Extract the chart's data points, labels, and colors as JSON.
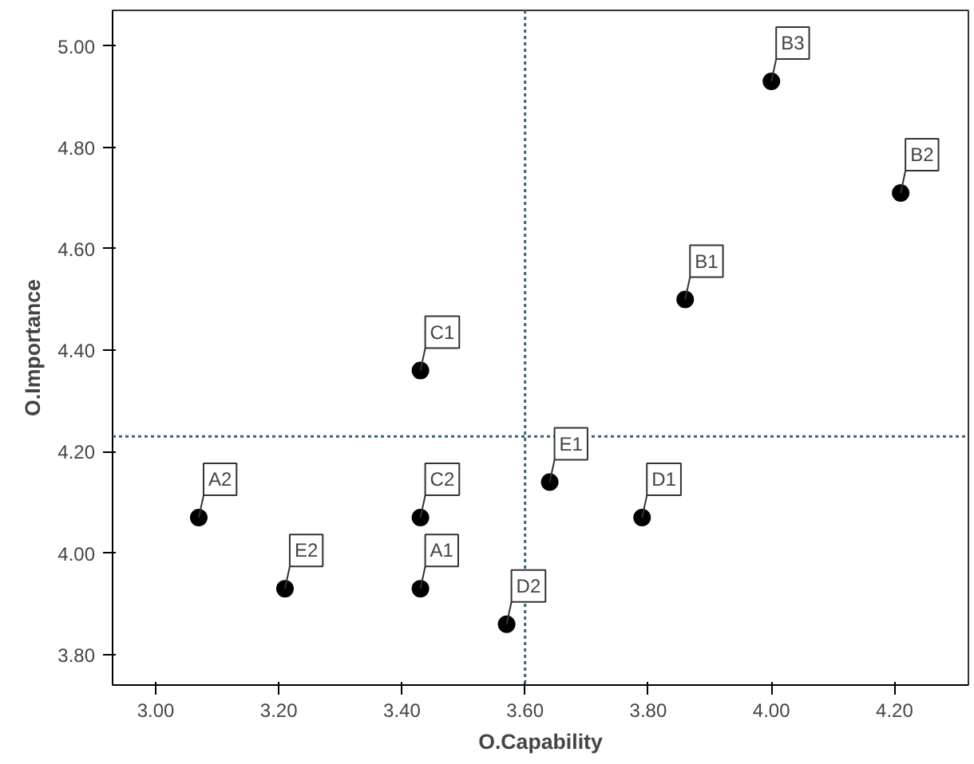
{
  "chart_data": {
    "type": "scatter",
    "xlabel": "O.Capability",
    "ylabel": "O.Importance",
    "x": [
      3.07,
      3.21,
      3.43,
      3.43,
      3.43,
      3.57,
      3.64,
      3.79,
      3.86,
      4.0,
      4.21
    ],
    "series": [
      {
        "color": "#000000",
        "values": [
          4.07,
          3.93,
          4.36,
          4.07,
          3.93,
          3.86,
          4.14,
          4.07,
          4.5,
          4.93,
          4.71
        ]
      }
    ],
    "marker": "circle",
    "grid": false,
    "xlim": [
      2.93,
      4.32
    ],
    "ylim": [
      3.74,
      5.07
    ],
    "xticks": [
      {
        "value": 3.0,
        "label": "3.00"
      },
      {
        "value": 3.2,
        "label": "3.20"
      },
      {
        "value": 3.4,
        "label": "3.40"
      },
      {
        "value": 3.6,
        "label": "3.60"
      },
      {
        "value": 3.8,
        "label": "3.80"
      },
      {
        "value": 4.0,
        "label": "4.00"
      },
      {
        "value": 4.2,
        "label": "4.20"
      }
    ],
    "yticks": [
      {
        "value": 3.8,
        "label": "3.80"
      },
      {
        "value": 4.0,
        "label": "4.00"
      },
      {
        "value": 4.2,
        "label": "4.20"
      },
      {
        "value": 4.4,
        "label": "4.40"
      },
      {
        "value": 4.6,
        "label": "4.60"
      },
      {
        "value": 4.8,
        "label": "4.80"
      },
      {
        "value": 5.0,
        "label": "5.00"
      }
    ],
    "ref_lines": [
      {
        "axis": "x",
        "value": 3.6,
        "color": "#336677",
        "line_style": "dotted"
      },
      {
        "axis": "y",
        "value": 4.23,
        "color": "#336677",
        "line_style": "dotted"
      }
    ],
    "annotations": [
      {
        "text": "A2",
        "x": 3.07,
        "y": 4.07
      },
      {
        "text": "E2",
        "x": 3.21,
        "y": 3.93
      },
      {
        "text": "C1",
        "x": 3.43,
        "y": 4.36
      },
      {
        "text": "C2",
        "x": 3.43,
        "y": 4.07
      },
      {
        "text": "A1",
        "x": 3.43,
        "y": 3.93
      },
      {
        "text": "D2",
        "x": 3.57,
        "y": 3.86
      },
      {
        "text": "E1",
        "x": 3.64,
        "y": 4.14
      },
      {
        "text": "D1",
        "x": 3.79,
        "y": 4.07
      },
      {
        "text": "B1",
        "x": 3.86,
        "y": 4.5
      },
      {
        "text": "B3",
        "x": 4.0,
        "y": 4.93
      },
      {
        "text": "B2",
        "x": 4.21,
        "y": 4.71
      }
    ]
  }
}
